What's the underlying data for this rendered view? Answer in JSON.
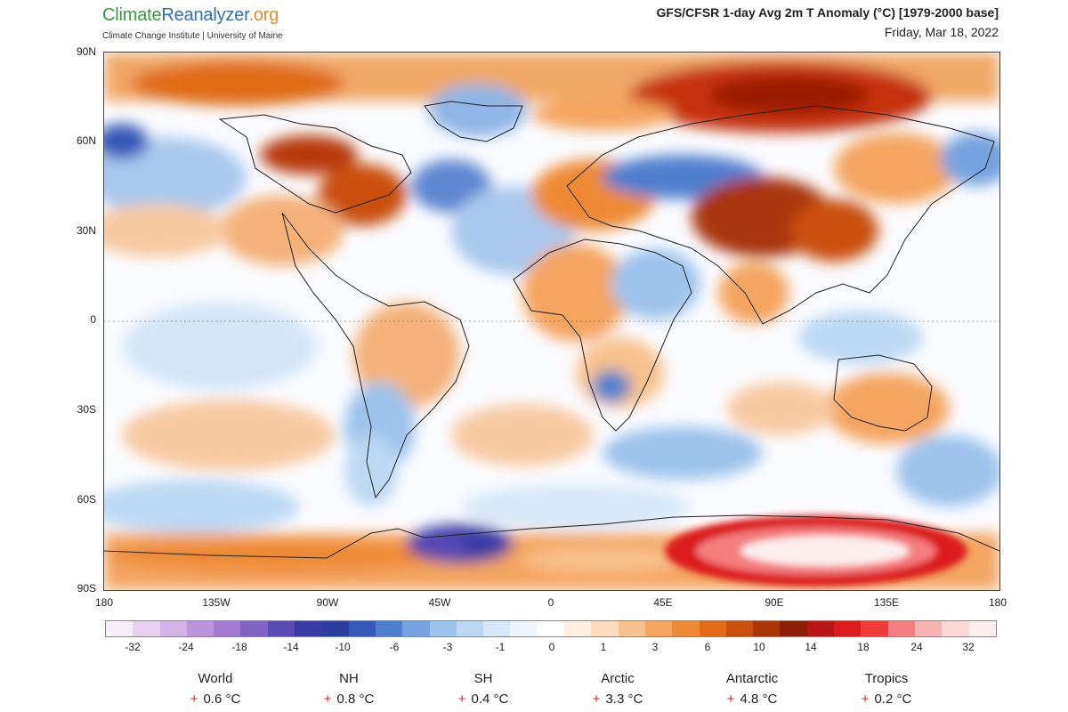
{
  "header": {
    "brand_parts": [
      "Climate",
      "Reanalyzer",
      ".org"
    ],
    "subtitle": "Climate Change Institute | University of Maine",
    "title": "GFS/CFSR 1-day Avg 2m T Anomaly (°C) [1979-2000 base]",
    "date": "Friday, Mar 18, 2022"
  },
  "map": {
    "y_labels": [
      "90N",
      "60N",
      "30N",
      "0",
      "30S",
      "60S",
      "90S"
    ],
    "x_labels": [
      "180",
      "135W",
      "90W",
      "45W",
      "0",
      "45E",
      "90E",
      "135E",
      "180"
    ]
  },
  "colorbar": {
    "labels": [
      "-32",
      "-24",
      "-18",
      "-14",
      "-10",
      "-6",
      "-3",
      "-1",
      "0",
      "1",
      "3",
      "6",
      "10",
      "14",
      "18",
      "24",
      "32"
    ],
    "colors": [
      "#f6eef8",
      "#e6d2ef",
      "#d2b4e6",
      "#bc96dc",
      "#a07bd0",
      "#7f62c4",
      "#5a4bb5",
      "#3a3aa6",
      "#2b3e9e",
      "#3559b8",
      "#4f7fce",
      "#74a3df",
      "#9cc3ec",
      "#bcd8f3",
      "#d7e8f8",
      "#eef5fc",
      "#ffffff",
      "#fdf0e2",
      "#fbdcbc",
      "#f8c28f",
      "#f4a560",
      "#ee8a35",
      "#e06c17",
      "#c9500c",
      "#a83607",
      "#8a1f05",
      "#b81515",
      "#dc1c1c",
      "#f03c3c",
      "#f47e7e",
      "#f8b4b4",
      "#fbd9d9",
      "#fdeeee"
    ]
  },
  "stats": [
    {
      "name": "World",
      "sign": "+",
      "value": "0.6 °C"
    },
    {
      "name": "NH",
      "sign": "+",
      "value": "0.8 °C"
    },
    {
      "name": "SH",
      "sign": "+",
      "value": "0.4 °C"
    },
    {
      "name": "Arctic",
      "sign": "+",
      "value": "3.3 °C"
    },
    {
      "name": "Antarctic",
      "sign": "+",
      "value": "4.8 °C"
    },
    {
      "name": "Tropics",
      "sign": "+",
      "value": "0.2 °C"
    }
  ]
}
